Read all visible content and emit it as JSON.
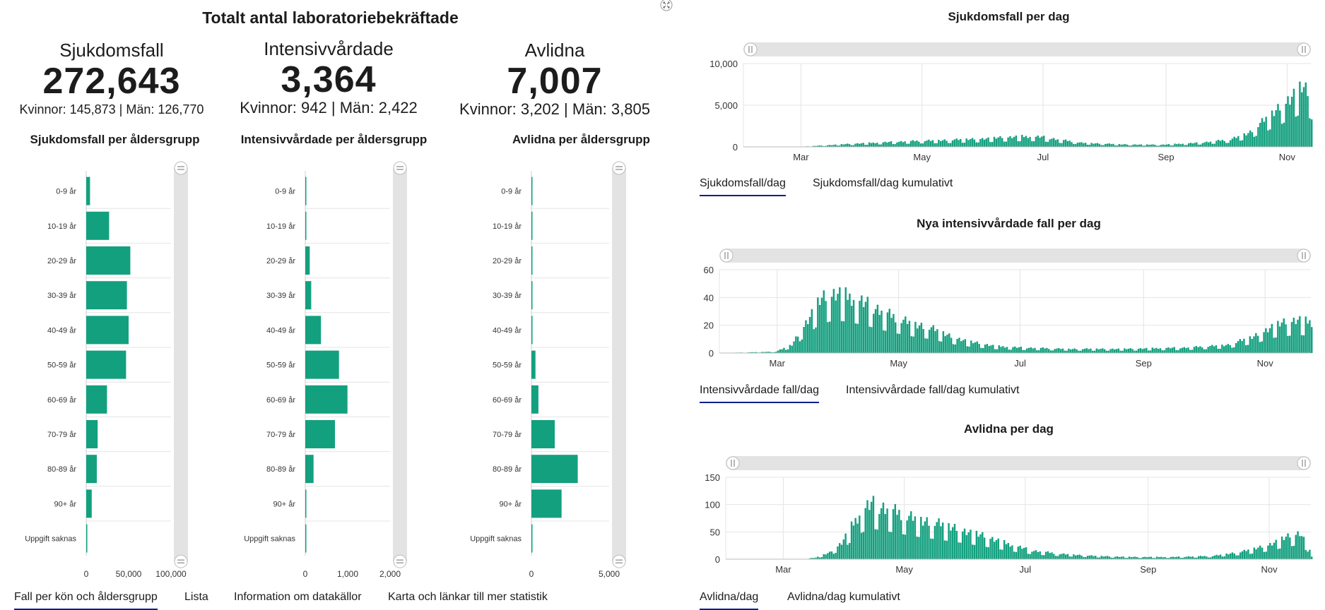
{
  "header": {
    "title": "Totalt antal laboratoriebekräftade"
  },
  "kpis": [
    {
      "label": "Sjukdomsfall",
      "value": "272,643",
      "sub_female": "Kvinnor: 145,873",
      "sub_sep": "|",
      "sub_male": "Män: 126,770"
    },
    {
      "label": "Intensivvårdade",
      "value": "3,364",
      "sub_female": "Kvinnor: 942",
      "sub_sep": "|",
      "sub_male": "Män: 2,422"
    },
    {
      "label": "Avlidna",
      "value": "7,007",
      "sub_female": "Kvinnor: 3,202",
      "sub_sep": "|",
      "sub_male": "Män: 3,805"
    }
  ],
  "bottom_tabs": [
    {
      "label": "Fall per kön och åldersgrupp",
      "active": true
    },
    {
      "label": "Lista",
      "active": false
    },
    {
      "label": "Information om datakällor",
      "active": false
    },
    {
      "label": "Karta och länkar till mer statistik",
      "active": false
    }
  ],
  "right_tabs": [
    [
      {
        "label": "Sjukdomsfall/dag",
        "active": true
      },
      {
        "label": "Sjukdomsfall/dag kumulativt",
        "active": false
      }
    ],
    [
      {
        "label": "Intensivvårdade fall/dag",
        "active": true
      },
      {
        "label": "Intensivvårdade fall/dag kumulativt",
        "active": false
      }
    ],
    [
      {
        "label": "Avlidna/dag",
        "active": true
      },
      {
        "label": "Avlidna/dag kumulativt",
        "active": false
      }
    ]
  ],
  "colors": {
    "bar": "#13a07f",
    "grid": "#e4e4e4",
    "scroll_track": "#e3e3e3",
    "tab_underline": "#0c1e8c"
  },
  "chart_data": [
    {
      "type": "bar",
      "orientation": "horizontal",
      "title": "Sjukdomsfall per åldersgrupp",
      "categories": [
        "0-9 år",
        "10-19 år",
        "20-29 år",
        "30-39 år",
        "40-49 år",
        "50-59 år",
        "60-69 år",
        "70-79 år",
        "80-89 år",
        "90+ år",
        "Uppgift saknas"
      ],
      "values": [
        4500,
        27000,
        52000,
        48000,
        50000,
        47000,
        24500,
        13500,
        12500,
        6500,
        400
      ],
      "xlim": [
        0,
        100000
      ],
      "ticks": [
        0,
        50000,
        100000
      ],
      "tick_labels": [
        "0",
        "50,000",
        "100,000"
      ]
    },
    {
      "type": "bar",
      "orientation": "horizontal",
      "title": "Intensivvårdade per åldersgrupp",
      "categories": [
        "0-9 år",
        "10-19 år",
        "20-29 år",
        "30-39 år",
        "40-49 år",
        "50-59 år",
        "60-69 år",
        "70-79 år",
        "80-89 år",
        "90+ år",
        "Uppgift saknas"
      ],
      "values": [
        18,
        22,
        105,
        140,
        370,
        795,
        995,
        700,
        195,
        5,
        3
      ],
      "xlim": [
        0,
        2000
      ],
      "ticks": [
        0,
        1000,
        2000
      ],
      "tick_labels": [
        "0",
        "1,000",
        "2,000"
      ]
    },
    {
      "type": "bar",
      "orientation": "horizontal",
      "title": "Avlidna per åldersgrupp",
      "categories": [
        "0-9 år",
        "10-19 år",
        "20-29 år",
        "30-39 år",
        "40-49 år",
        "50-59 år",
        "60-69 år",
        "70-79 år",
        "80-89 år",
        "90+ år",
        "Uppgift saknas"
      ],
      "values": [
        1,
        2,
        12,
        20,
        70,
        260,
        450,
        1500,
        2980,
        1940,
        3
      ],
      "xlim": [
        0,
        5000
      ],
      "ticks": [
        0,
        5000
      ],
      "tick_labels": [
        "0",
        "5,000"
      ]
    },
    {
      "type": "bar",
      "title": "Sjukdomsfall per dag",
      "x_start_day": 0,
      "x_end_day": 286,
      "month_ticks": [
        {
          "label": "Mar",
          "day": 29
        },
        {
          "label": "May",
          "day": 90
        },
        {
          "label": "Jul",
          "day": 151
        },
        {
          "label": "Sep",
          "day": 213
        },
        {
          "label": "Nov",
          "day": 274
        }
      ],
      "ylim": [
        0,
        10000
      ],
      "y_ticks": [
        0,
        5000,
        10000
      ],
      "y_tick_labels": [
        "0",
        "5,000",
        "10,000"
      ],
      "profile": [
        [
          0,
          0
        ],
        [
          30,
          40
        ],
        [
          55,
          380
        ],
        [
          75,
          600
        ],
        [
          90,
          750
        ],
        [
          105,
          850
        ],
        [
          120,
          1000
        ],
        [
          140,
          1250
        ],
        [
          150,
          1200
        ],
        [
          158,
          900
        ],
        [
          170,
          500
        ],
        [
          190,
          300
        ],
        [
          210,
          250
        ],
        [
          230,
          500
        ],
        [
          245,
          900
        ],
        [
          255,
          1800
        ],
        [
          262,
          3200
        ],
        [
          270,
          4800
        ],
        [
          276,
          6200
        ],
        [
          281,
          7200
        ],
        [
          286,
          6000
        ]
      ]
    },
    {
      "type": "bar",
      "title": "Nya intensivvårdade fall per dag",
      "x_start_day": 0,
      "x_end_day": 297,
      "month_ticks": [
        {
          "label": "Mar",
          "day": 29
        },
        {
          "label": "May",
          "day": 90
        },
        {
          "label": "Jul",
          "day": 151
        },
        {
          "label": "Sep",
          "day": 213
        },
        {
          "label": "Nov",
          "day": 274
        }
      ],
      "ylim": [
        0,
        60
      ],
      "y_ticks": [
        0,
        20,
        40,
        60
      ],
      "y_tick_labels": [
        "0",
        "20",
        "40",
        "60"
      ],
      "profile": [
        [
          0,
          0
        ],
        [
          28,
          1
        ],
        [
          36,
          6
        ],
        [
          42,
          20
        ],
        [
          50,
          38
        ],
        [
          58,
          43
        ],
        [
          66,
          40
        ],
        [
          76,
          34
        ],
        [
          86,
          27
        ],
        [
          96,
          22
        ],
        [
          106,
          18
        ],
        [
          116,
          12
        ],
        [
          126,
          8
        ],
        [
          138,
          5
        ],
        [
          150,
          4
        ],
        [
          175,
          3
        ],
        [
          205,
          3
        ],
        [
          235,
          4
        ],
        [
          255,
          6
        ],
        [
          268,
          12
        ],
        [
          278,
          20
        ],
        [
          290,
          24
        ],
        [
          297,
          22
        ]
      ]
    },
    {
      "type": "bar",
      "title": "Avlidna per dag",
      "x_start_day": 0,
      "x_end_day": 295,
      "month_ticks": [
        {
          "label": "Mar",
          "day": 29
        },
        {
          "label": "May",
          "day": 90
        },
        {
          "label": "Jul",
          "day": 151
        },
        {
          "label": "Sep",
          "day": 213
        },
        {
          "label": "Nov",
          "day": 274
        }
      ],
      "ylim": [
        0,
        150
      ],
      "y_ticks": [
        0,
        50,
        100,
        150
      ],
      "y_tick_labels": [
        "0",
        "50",
        "100",
        "150"
      ],
      "profile": [
        [
          0,
          0
        ],
        [
          38,
          0
        ],
        [
          45,
          3
        ],
        [
          52,
          12
        ],
        [
          58,
          30
        ],
        [
          63,
          60
        ],
        [
          68,
          88
        ],
        [
          73,
          102
        ],
        [
          80,
          94
        ],
        [
          88,
          84
        ],
        [
          96,
          75
        ],
        [
          106,
          66
        ],
        [
          118,
          55
        ],
        [
          130,
          42
        ],
        [
          142,
          28
        ],
        [
          154,
          16
        ],
        [
          168,
          10
        ],
        [
          185,
          6
        ],
        [
          205,
          4
        ],
        [
          225,
          4
        ],
        [
          245,
          6
        ],
        [
          260,
          14
        ],
        [
          272,
          25
        ],
        [
          282,
          40
        ],
        [
          289,
          48
        ],
        [
          293,
          25
        ],
        [
          295,
          5
        ]
      ]
    }
  ]
}
